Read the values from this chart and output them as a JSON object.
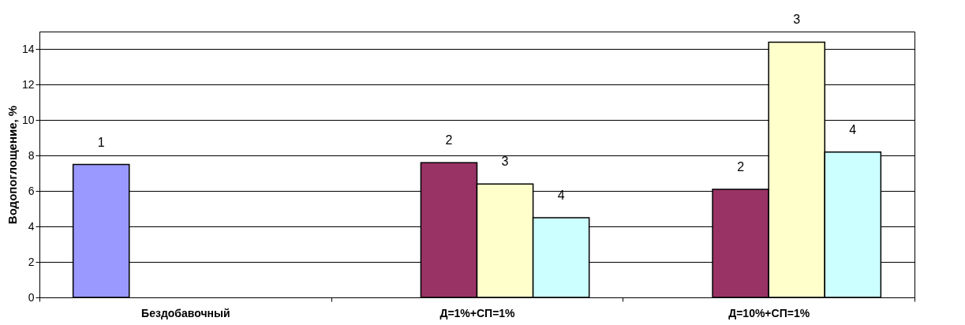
{
  "chart_data": {
    "type": "bar",
    "ylabel": "Водопоглощение, %",
    "categories": [
      "Бездобавочный",
      "Д=1%+СП=1%",
      "Д=10%+СП=1%"
    ],
    "series": [
      {
        "name": "1",
        "color": "#9999ff",
        "values": [
          7.5,
          null,
          null
        ]
      },
      {
        "name": "2",
        "color": "#993366",
        "values": [
          null,
          7.6,
          6.1
        ]
      },
      {
        "name": "3",
        "color": "#ffffcc",
        "values": [
          null,
          6.4,
          14.4
        ]
      },
      {
        "name": "4",
        "color": "#ccffff",
        "values": [
          null,
          4.5,
          8.2
        ]
      }
    ],
    "ylim": [
      0,
      15
    ],
    "yticks": [
      0,
      2,
      4,
      6,
      8,
      10,
      12,
      14
    ],
    "grid": "y",
    "legend": false
  }
}
